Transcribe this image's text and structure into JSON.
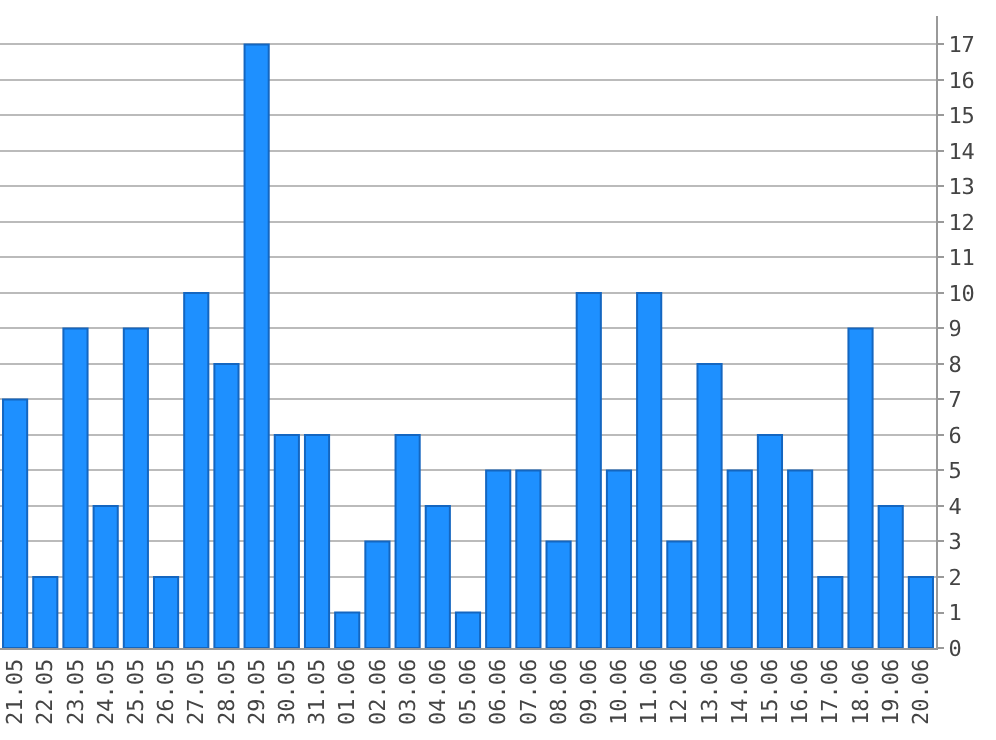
{
  "chart_data": {
    "type": "bar",
    "categories": [
      "21.05",
      "22.05",
      "23.05",
      "24.05",
      "25.05",
      "26.05",
      "27.05",
      "28.05",
      "29.05",
      "30.05",
      "31.05",
      "01.06",
      "02.06",
      "03.06",
      "04.06",
      "05.06",
      "06.06",
      "07.06",
      "08.06",
      "09.06",
      "10.06",
      "11.06",
      "12.06",
      "13.06",
      "14.06",
      "15.06",
      "16.06",
      "17.06",
      "18.06",
      "19.06",
      "20.06"
    ],
    "values": [
      7,
      2,
      9,
      4,
      9,
      2,
      10,
      8,
      17,
      6,
      6,
      1,
      3,
      6,
      4,
      1,
      5,
      5,
      3,
      10,
      5,
      10,
      3,
      8,
      5,
      6,
      5,
      2,
      9,
      4,
      2
    ],
    "color": "#1e90ff",
    "ylim": [
      0,
      17.8
    ],
    "yticks": [
      0,
      1,
      2,
      3,
      4,
      5,
      6,
      7,
      8,
      9,
      10,
      11,
      12,
      13,
      14,
      15,
      16,
      17
    ],
    "grid": "y"
  }
}
